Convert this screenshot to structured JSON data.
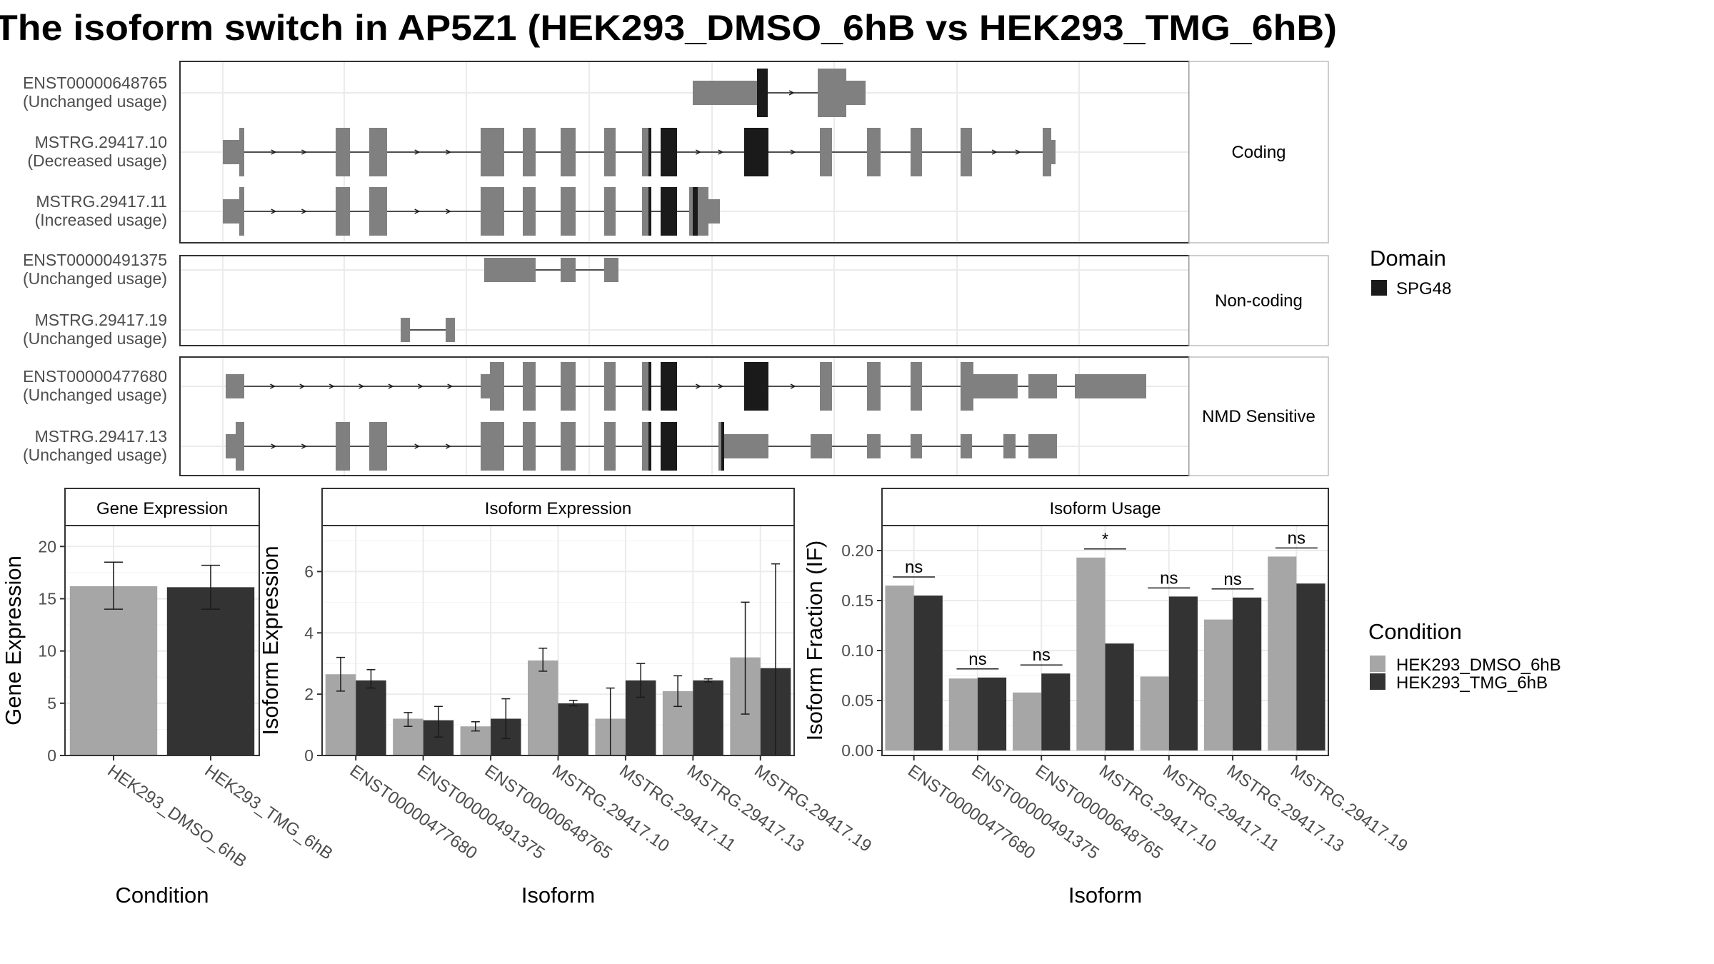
{
  "title": "The isoform switch in AP5Z1 (HEK293_DMSO_6hB vs HEK293_TMG_6hB)",
  "colors": {
    "exon": "#808080",
    "domain": "#1a1a1a",
    "dmso": "#a6a6a6",
    "tmg": "#333333",
    "grid": "#ebebeb",
    "strip": "#ffffff"
  },
  "domain_legend": {
    "title": "Domain",
    "items": [
      "SPG48"
    ]
  },
  "condition_legend": {
    "title": "Condition",
    "items": [
      "HEK293_DMSO_6hB",
      "HEK293_TMG_6hB"
    ]
  },
  "structure": {
    "groups": [
      {
        "label": "Coding",
        "transcripts": [
          {
            "name": "ENST00000648765",
            "status": "(Unchanged usage)"
          },
          {
            "name": "MSTRG.29417.10",
            "status": "(Decreased usage)"
          },
          {
            "name": "MSTRG.29417.11",
            "status": "(Increased usage)"
          }
        ]
      },
      {
        "label": "Non-coding",
        "transcripts": [
          {
            "name": "ENST00000491375",
            "status": "(Unchanged usage)"
          },
          {
            "name": "MSTRG.29417.19",
            "status": "(Unchanged usage)"
          }
        ]
      },
      {
        "label": "NMD Sensitive",
        "transcripts": [
          {
            "name": "ENST00000477680",
            "status": "(Unchanged usage)"
          },
          {
            "name": "MSTRG.29417.13",
            "status": "(Unchanged usage)"
          }
        ]
      }
    ]
  },
  "chart_data": [
    {
      "type": "bar",
      "title": "Gene Expression",
      "xlabel": "Condition",
      "ylabel": "Gene Expression",
      "ylim": [
        0,
        22
      ],
      "yticks": [
        "0",
        "5",
        "10",
        "15",
        "20"
      ],
      "categories": [
        "HEK293_DMSO_6hB",
        "HEK293_TMG_6hB"
      ],
      "values": [
        16.2,
        16.1
      ],
      "error": [
        [
          14.0,
          18.5
        ],
        [
          14.0,
          18.2
        ]
      ]
    },
    {
      "type": "bar",
      "title": "Isoform Expression",
      "xlabel": "Isoform",
      "ylabel": "Isoform Expression",
      "ylim": [
        0,
        7.5
      ],
      "yticks": [
        "0",
        "2",
        "4",
        "6"
      ],
      "categories": [
        "ENST00000477680",
        "ENST00000491375",
        "ENST00000648765",
        "MSTRG.29417.10",
        "MSTRG.29417.11",
        "MSTRG.29417.13",
        "MSTRG.29417.19"
      ],
      "series": [
        {
          "name": "HEK293_DMSO_6hB",
          "values": [
            2.65,
            1.2,
            0.95,
            3.1,
            1.2,
            2.1,
            3.2
          ],
          "error": [
            [
              2.1,
              3.2
            ],
            [
              0.95,
              1.4
            ],
            [
              0.8,
              1.1
            ],
            [
              2.75,
              3.5
            ],
            [
              0,
              2.2
            ],
            [
              1.6,
              2.6
            ],
            [
              1.35,
              5.0
            ]
          ]
        },
        {
          "name": "HEK293_TMG_6hB",
          "values": [
            2.45,
            1.15,
            1.2,
            1.7,
            2.45,
            2.45,
            2.85
          ],
          "error": [
            [
              2.2,
              2.8
            ],
            [
              0.6,
              1.6
            ],
            [
              0.55,
              1.85
            ],
            [
              1.62,
              1.8
            ],
            [
              1.9,
              3.0
            ],
            [
              2.4,
              2.5
            ],
            [
              0,
              6.25
            ]
          ]
        }
      ]
    },
    {
      "type": "bar",
      "title": "Isoform Usage",
      "xlabel": "Isoform",
      "ylabel": "Isoform Fraction (IF)",
      "ylim": [
        -0.005,
        0.225
      ],
      "yticks": [
        "0.00",
        "0.05",
        "0.10",
        "0.15",
        "0.20"
      ],
      "categories": [
        "ENST00000477680",
        "ENST00000491375",
        "ENST00000648765",
        "MSTRG.29417.10",
        "MSTRG.29417.11",
        "MSTRG.29417.13",
        "MSTRG.29417.19"
      ],
      "series": [
        {
          "name": "HEK293_DMSO_6hB",
          "values": [
            0.165,
            0.072,
            0.058,
            0.193,
            0.074,
            0.131,
            0.194
          ]
        },
        {
          "name": "HEK293_TMG_6hB",
          "values": [
            0.155,
            0.073,
            0.077,
            0.107,
            0.154,
            0.153,
            0.167
          ]
        }
      ],
      "significance": [
        "ns",
        "ns",
        "ns",
        "*",
        "ns",
        "ns",
        "ns"
      ]
    }
  ]
}
